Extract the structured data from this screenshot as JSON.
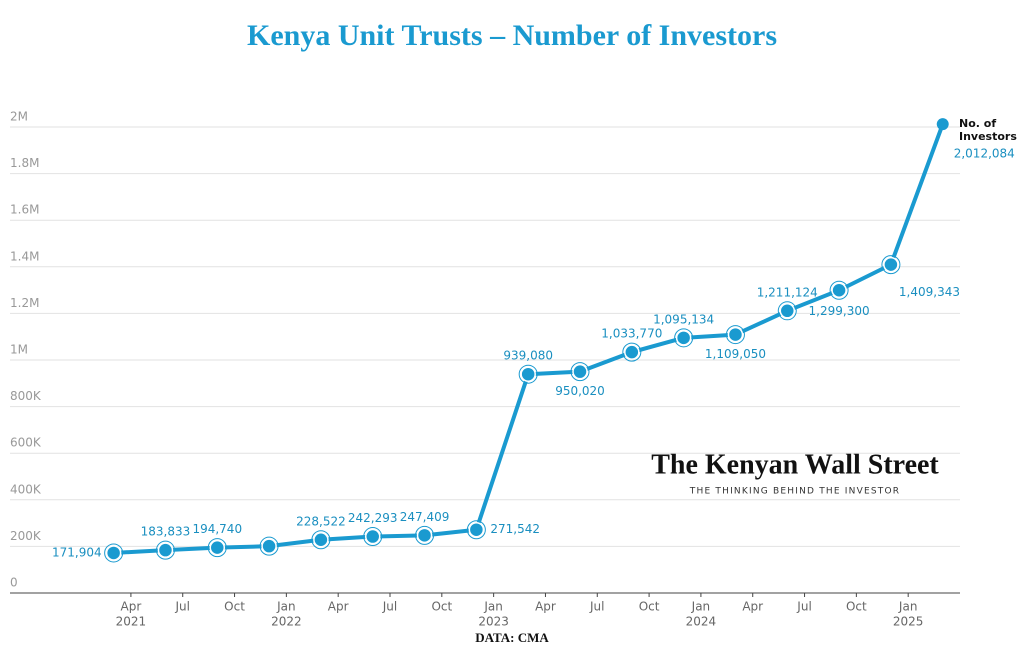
{
  "chart_data": {
    "type": "line",
    "title": "Kenya Unit Trusts – Number of Investors",
    "source": "DATA: CMA",
    "watermark": {
      "brand": "The Kenyan Wall Street",
      "tagline": "THE THINKING BEHIND THE INVESTOR"
    },
    "x": [
      "2021-03",
      "2021-06",
      "2021-09",
      "2021-12",
      "2022-03",
      "2022-06",
      "2022-09",
      "2022-12",
      "2023-03",
      "2023-06",
      "2023-09",
      "2023-12",
      "2024-03",
      "2024-06",
      "2024-09",
      "2024-12",
      "2025-03"
    ],
    "series": [
      {
        "name": "No. of Investors",
        "color": "#1a9ad0",
        "values": [
          171904,
          183833,
          194740,
          201000,
          228522,
          242293,
          247409,
          271542,
          939080,
          950020,
          1033770,
          1095134,
          1109050,
          1211124,
          1299300,
          1409343,
          2012084
        ],
        "value_labels": [
          "171,904",
          "183,833",
          "194,740",
          null,
          "228,522",
          "242,293",
          "247,409",
          "271,542",
          "939,080",
          "950,020",
          "1,033,770",
          "1,095,134",
          "1,109,050",
          "1,211,124",
          "1,299,300",
          "1,409,343",
          "2,012,084"
        ]
      }
    ],
    "xlim": [
      "2020-09",
      "2025-04"
    ],
    "xticks": [
      {
        "value": "2021-04",
        "label": "Apr"
      },
      {
        "value": "2021-07",
        "label": "Jul"
      },
      {
        "value": "2021-10",
        "label": "Oct"
      },
      {
        "value": "2022-01",
        "label": "Jan"
      },
      {
        "value": "2022-04",
        "label": "Apr"
      },
      {
        "value": "2022-07",
        "label": "Jul"
      },
      {
        "value": "2022-10",
        "label": "Oct"
      },
      {
        "value": "2023-01",
        "label": "Jan"
      },
      {
        "value": "2023-04",
        "label": "Apr"
      },
      {
        "value": "2023-07",
        "label": "Jul"
      },
      {
        "value": "2023-10",
        "label": "Oct"
      },
      {
        "value": "2024-01",
        "label": "Jan"
      },
      {
        "value": "2024-04",
        "label": "Apr"
      },
      {
        "value": "2024-07",
        "label": "Jul"
      },
      {
        "value": "2024-10",
        "label": "Oct"
      },
      {
        "value": "2025-01",
        "label": "Jan"
      }
    ],
    "xtick_years": [
      {
        "value": "2021-04",
        "label": "2021"
      },
      {
        "value": "2022-01",
        "label": "2022"
      },
      {
        "value": "2023-01",
        "label": "2023"
      },
      {
        "value": "2024-01",
        "label": "2024"
      },
      {
        "value": "2025-01",
        "label": "2025"
      }
    ],
    "ylim": [
      0,
      2000000
    ],
    "yticks": [
      0,
      {
        "value": 200000,
        "label": "200K"
      },
      {
        "value": 400000,
        "label": "400K"
      },
      {
        "value": 600000,
        "label": "600K"
      },
      {
        "value": 800000,
        "label": "800K"
      },
      {
        "value": 1000000,
        "label": "1M"
      },
      {
        "value": 1200000,
        "label": "1.2M"
      },
      {
        "value": 1400000,
        "label": "1.4M"
      },
      {
        "value": 1600000,
        "label": "1.6M"
      },
      {
        "value": 1800000,
        "label": "1.8M"
      },
      {
        "value": 2000000,
        "label": "2M"
      }
    ],
    "grid": true
  }
}
